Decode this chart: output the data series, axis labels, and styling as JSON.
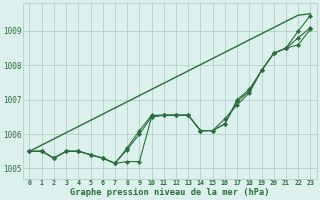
{
  "hours": [
    0,
    1,
    2,
    3,
    4,
    5,
    6,
    7,
    8,
    9,
    10,
    11,
    12,
    13,
    14,
    15,
    16,
    17,
    18,
    19,
    20,
    21,
    22,
    23
  ],
  "line_main": [
    1005.5,
    1005.5,
    1005.3,
    1005.5,
    1005.5,
    1005.4,
    1005.3,
    1005.15,
    1005.55,
    1006.0,
    1006.5,
    1006.55,
    1006.55,
    1006.55,
    1006.1,
    1006.1,
    1006.3,
    1006.95,
    1007.25,
    1007.85,
    1008.35,
    1008.5,
    1008.6,
    1009.05
  ],
  "line_mid": [
    1005.5,
    1005.5,
    1005.3,
    1005.5,
    1005.5,
    1005.4,
    1005.3,
    1005.15,
    1005.6,
    1006.1,
    1006.55,
    1006.55,
    1006.55,
    1006.55,
    1006.1,
    1006.1,
    1006.45,
    1006.85,
    1007.2,
    1007.85,
    1008.35,
    1008.5,
    1008.8,
    1009.1
  ],
  "line_outer": [
    1005.5,
    1005.5,
    1005.3,
    1005.5,
    1005.5,
    1005.4,
    1005.3,
    1005.15,
    1005.2,
    1005.2,
    1006.5,
    1006.55,
    1006.55,
    1006.55,
    1006.1,
    1006.1,
    1006.3,
    1007.0,
    1007.3,
    1007.85,
    1008.35,
    1008.5,
    1009.0,
    1009.45
  ],
  "line_trend": [
    1005.5,
    1005.68,
    1005.86,
    1006.04,
    1006.22,
    1006.4,
    1006.58,
    1006.76,
    1006.94,
    1007.12,
    1007.3,
    1007.48,
    1007.66,
    1007.84,
    1008.02,
    1008.2,
    1008.38,
    1008.56,
    1008.74,
    1008.92,
    1009.1,
    1009.28,
    1009.46,
    1009.5
  ],
  "bg_color": "#dcf0ee",
  "grid_color": "#b8d4ce",
  "line_color": "#2a6e3a",
  "ylabel_ticks": [
    1005,
    1006,
    1007,
    1008,
    1009
  ],
  "ylim": [
    1004.7,
    1009.8
  ],
  "xlim": [
    -0.5,
    23.5
  ],
  "xlabel": "Graphe pression niveau de la mer (hPa)"
}
